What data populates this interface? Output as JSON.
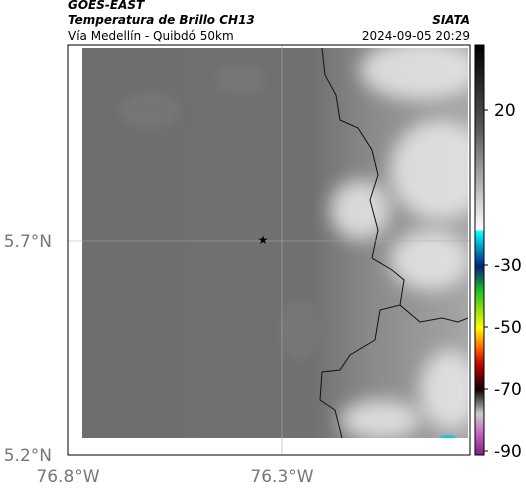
{
  "header": {
    "line1": "GOES-EAST",
    "line2": "Temperatura de Brillo CH13",
    "subtitle": "Vía Medellín - Quibdó 50km",
    "source": "SIATA",
    "datetime": "2024-09-05 20:29"
  },
  "map": {
    "lat_labels": [
      "5.7°N",
      "5.2°N"
    ],
    "lon_labels": [
      "76.8°W",
      "76.3°W"
    ]
  },
  "colorbar": {
    "ticks": [
      20,
      -30,
      -50,
      -70,
      -90
    ]
  }
}
